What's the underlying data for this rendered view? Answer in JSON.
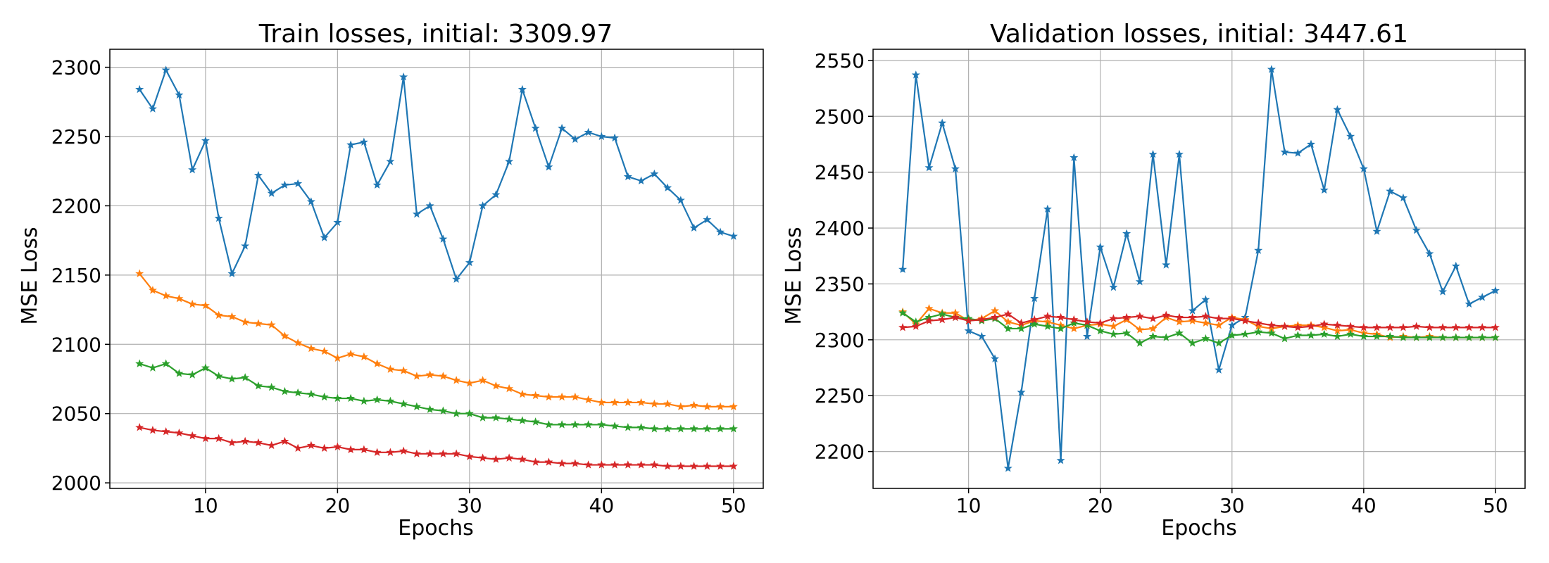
{
  "chart_data": [
    {
      "type": "line",
      "title": "Train losses, initial: 3309.97",
      "xlabel": "Epochs",
      "ylabel": "MSE Loss",
      "xlim": [
        2.75,
        52.25
      ],
      "ylim": [
        1996,
        2313
      ],
      "xticks": [
        10,
        20,
        30,
        40,
        50
      ],
      "yticks": [
        2000,
        2050,
        2100,
        2150,
        2200,
        2250,
        2300
      ],
      "grid": true,
      "marker": "star",
      "x": [
        5,
        6,
        7,
        8,
        9,
        10,
        11,
        12,
        13,
        14,
        15,
        16,
        17,
        18,
        19,
        20,
        21,
        22,
        23,
        24,
        25,
        26,
        27,
        28,
        29,
        30,
        31,
        32,
        33,
        34,
        35,
        36,
        37,
        38,
        39,
        40,
        41,
        42,
        43,
        44,
        45,
        46,
        47,
        48,
        49,
        50
      ],
      "series": [
        {
          "color": "#1f77b4",
          "values": [
            2284,
            2270,
            2298,
            2280,
            2226,
            2247,
            2191,
            2151,
            2171,
            2222,
            2209,
            2215,
            2216,
            2203,
            2177,
            2188,
            2244,
            2246,
            2215,
            2232,
            2293,
            2194,
            2200,
            2176,
            2147,
            2159,
            2200,
            2208,
            2232,
            2284,
            2256,
            2228,
            2256,
            2248,
            2253,
            2250,
            2249,
            2221,
            2218,
            2223,
            2213,
            2204,
            2184,
            2190,
            2181,
            2178
          ]
        },
        {
          "color": "#ff7f0e",
          "values": [
            2151,
            2139,
            2135,
            2133,
            2129,
            2128,
            2121,
            2120,
            2116,
            2115,
            2114,
            2106,
            2101,
            2097,
            2095,
            2090,
            2093,
            2091,
            2086,
            2082,
            2081,
            2077,
            2078,
            2077,
            2074,
            2072,
            2074,
            2070,
            2068,
            2064,
            2063,
            2062,
            2062,
            2062,
            2060,
            2058,
            2058,
            2058,
            2058,
            2057,
            2057,
            2055,
            2056,
            2055,
            2055,
            2055
          ]
        },
        {
          "color": "#2ca02c",
          "values": [
            2086,
            2083,
            2086,
            2079,
            2078,
            2083,
            2077,
            2075,
            2076,
            2070,
            2069,
            2066,
            2065,
            2064,
            2062,
            2061,
            2061,
            2059,
            2060,
            2059,
            2057,
            2055,
            2053,
            2052,
            2050,
            2050,
            2047,
            2047,
            2046,
            2045,
            2044,
            2042,
            2042,
            2042,
            2042,
            2042,
            2041,
            2040,
            2040,
            2039,
            2039,
            2039,
            2039,
            2039,
            2039,
            2039
          ]
        },
        {
          "color": "#d62728",
          "values": [
            2040,
            2038,
            2037,
            2036,
            2034,
            2032,
            2032,
            2029,
            2030,
            2029,
            2027,
            2030,
            2025,
            2027,
            2025,
            2026,
            2024,
            2024,
            2022,
            2022,
            2023,
            2021,
            2021,
            2021,
            2021,
            2019,
            2018,
            2017,
            2018,
            2017,
            2015,
            2015,
            2014,
            2014,
            2013,
            2013,
            2013,
            2013,
            2013,
            2013,
            2012,
            2012,
            2012,
            2012,
            2012,
            2012
          ]
        }
      ]
    },
    {
      "type": "line",
      "title": "Validation losses, initial: 3447.61",
      "xlabel": "Epochs",
      "ylabel": "MSE Loss",
      "xlim": [
        2.75,
        52.25
      ],
      "ylim": [
        2167,
        2560
      ],
      "xticks": [
        10,
        20,
        30,
        40,
        50
      ],
      "yticks": [
        2200,
        2250,
        2300,
        2350,
        2400,
        2450,
        2500,
        2550
      ],
      "grid": true,
      "marker": "star",
      "x": [
        5,
        6,
        7,
        8,
        9,
        10,
        11,
        12,
        13,
        14,
        15,
        16,
        17,
        18,
        19,
        20,
        21,
        22,
        23,
        24,
        25,
        26,
        27,
        28,
        29,
        30,
        31,
        32,
        33,
        34,
        35,
        36,
        37,
        38,
        39,
        40,
        41,
        42,
        43,
        44,
        45,
        46,
        47,
        48,
        49,
        50
      ],
      "series": [
        {
          "color": "#1f77b4",
          "values": [
            2363,
            2537,
            2454,
            2494,
            2453,
            2308,
            2303,
            2283,
            2185,
            2253,
            2337,
            2417,
            2192,
            2463,
            2303,
            2383,
            2347,
            2395,
            2352,
            2466,
            2367,
            2466,
            2326,
            2336,
            2273,
            2313,
            2320,
            2380,
            2542,
            2468,
            2467,
            2475,
            2434,
            2506,
            2482,
            2453,
            2397,
            2433,
            2427,
            2398,
            2377,
            2343,
            2366,
            2332,
            2338,
            2344
          ]
        },
        {
          "color": "#ff7f0e",
          "values": [
            2325,
            2314,
            2328,
            2324,
            2324,
            2317,
            2319,
            2326,
            2316,
            2313,
            2317,
            2316,
            2313,
            2310,
            2313,
            2314,
            2312,
            2318,
            2309,
            2310,
            2320,
            2316,
            2317,
            2315,
            2313,
            2320,
            2318,
            2312,
            2310,
            2312,
            2313,
            2313,
            2311,
            2308,
            2309,
            2306,
            2305,
            2302,
            2303,
            2302,
            2303,
            2302,
            2302,
            2302,
            2302,
            2302
          ]
        },
        {
          "color": "#2ca02c",
          "values": [
            2324,
            2316,
            2320,
            2323,
            2320,
            2319,
            2317,
            2319,
            2310,
            2310,
            2314,
            2312,
            2310,
            2315,
            2313,
            2308,
            2305,
            2306,
            2297,
            2303,
            2302,
            2306,
            2297,
            2301,
            2297,
            2304,
            2305,
            2307,
            2306,
            2301,
            2304,
            2304,
            2305,
            2303,
            2305,
            2303,
            2303,
            2303,
            2302,
            2302,
            2302,
            2302,
            2302,
            2302,
            2302,
            2302
          ]
        },
        {
          "color": "#d62728",
          "values": [
            2311,
            2312,
            2317,
            2318,
            2320,
            2317,
            2318,
            2320,
            2323,
            2315,
            2318,
            2321,
            2320,
            2318,
            2316,
            2315,
            2319,
            2320,
            2321,
            2319,
            2322,
            2320,
            2320,
            2321,
            2319,
            2319,
            2317,
            2315,
            2313,
            2312,
            2311,
            2312,
            2314,
            2313,
            2312,
            2311,
            2311,
            2311,
            2311,
            2312,
            2311,
            2311,
            2311,
            2311,
            2311,
            2311
          ]
        }
      ]
    }
  ]
}
